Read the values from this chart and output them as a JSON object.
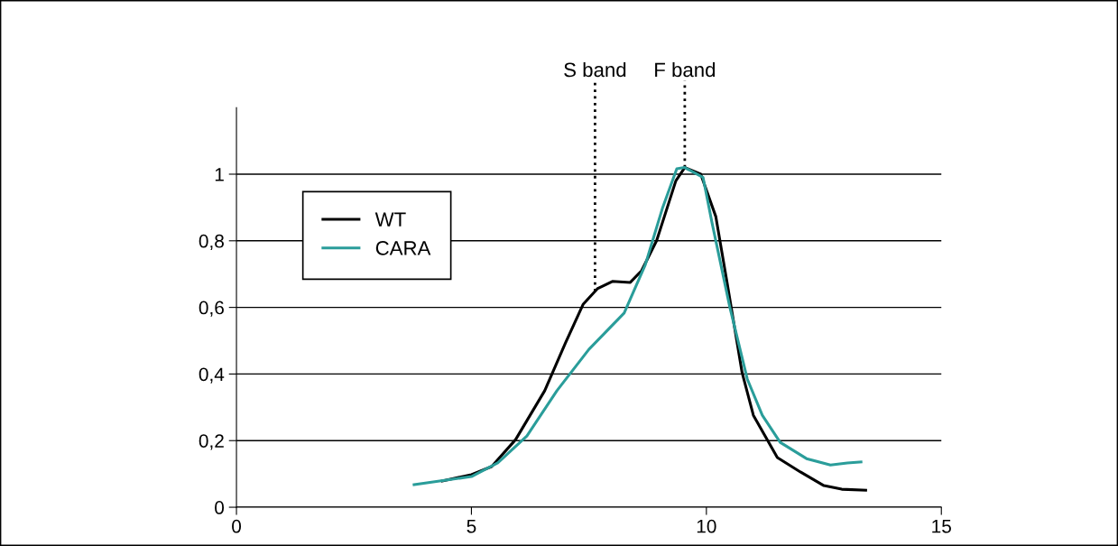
{
  "chart_data": {
    "type": "line",
    "series": [
      {
        "name": "WT",
        "color": "#000000",
        "x": [
          4.38,
          5.0,
          5.43,
          5.94,
          6.56,
          7.0,
          7.38,
          7.68,
          8.0,
          8.38,
          8.62,
          8.94,
          9.35,
          9.54,
          9.88,
          10.2,
          10.44,
          10.76,
          11.0,
          11.51,
          12.0,
          12.5,
          12.88,
          13.39
        ],
        "values": [
          0.079,
          0.098,
          0.122,
          0.203,
          0.35,
          0.493,
          0.61,
          0.656,
          0.678,
          0.675,
          0.71,
          0.8,
          0.98,
          1.02,
          1.0,
          0.873,
          0.675,
          0.404,
          0.276,
          0.149,
          0.106,
          0.065,
          0.054,
          0.051
        ]
      },
      {
        "name": "CARA",
        "color": "#2a9d9a",
        "x": [
          3.78,
          5.0,
          5.56,
          6.18,
          6.82,
          7.5,
          8.25,
          8.7,
          9.07,
          9.37,
          9.54,
          9.93,
          10.12,
          10.5,
          10.87,
          11.19,
          11.57,
          12.13,
          12.64,
          13.0,
          13.29
        ],
        "values": [
          0.068,
          0.092,
          0.133,
          0.214,
          0.35,
          0.474,
          0.583,
          0.728,
          0.9,
          1.016,
          1.02,
          0.99,
          0.854,
          0.6,
          0.385,
          0.276,
          0.195,
          0.146,
          0.127,
          0.133,
          0.136
        ]
      }
    ],
    "xlim": [
      0,
      15
    ],
    "xticks": [
      0,
      5,
      10,
      15
    ],
    "ylim": [
      0,
      1.2
    ],
    "yticks": [
      0,
      {
        "value": 0.2,
        "label": "0,2"
      },
      {
        "value": 0.4,
        "label": "0,4"
      },
      {
        "value": 0.6,
        "label": "0,6"
      },
      {
        "value": 0.8,
        "label": "0,8"
      },
      1
    ],
    "grid": "y",
    "legend": "left",
    "marker": "none",
    "line_style": "solid",
    "ref_lines": [
      {
        "axis": "x",
        "value": 7.63,
        "label": "S band",
        "line_style": "dotted",
        "color": "#000000"
      },
      {
        "axis": "x",
        "value": 9.54,
        "label": "F band",
        "line_style": "dotted",
        "color": "#000000"
      }
    ]
  }
}
